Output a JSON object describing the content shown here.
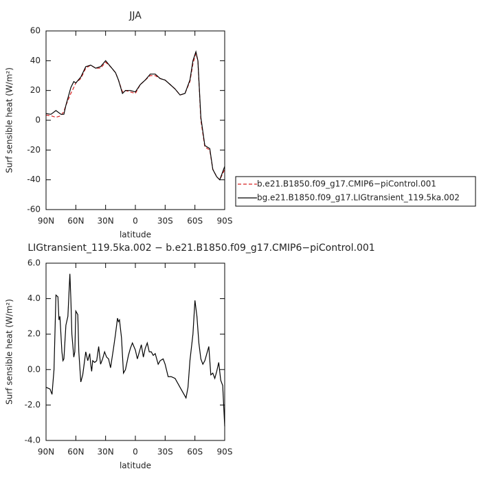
{
  "chart_data": [
    {
      "type": "line",
      "title": "JJA",
      "xlabel": "latitude",
      "ylabel": "Surf sensible heat (W/m²)",
      "x": [
        90,
        85,
        80,
        75,
        72,
        70,
        65,
        62,
        60,
        55,
        50,
        45,
        40,
        35,
        30,
        25,
        20,
        17,
        13,
        10,
        5,
        0,
        -5,
        -10,
        -15,
        -20,
        -25,
        -30,
        -35,
        -40,
        -45,
        -50,
        -55,
        -58,
        -61,
        -63,
        -66,
        -70,
        -75,
        -78,
        -82,
        -85,
        -90
      ],
      "series": [
        {
          "name": "b.e21.B1850.f09_g17.CMIP6−piControl.001",
          "color": "#d62020",
          "linestyle": "dashed",
          "values": [
            3.5,
            3,
            2,
            3,
            6,
            10,
            18,
            22,
            25,
            28,
            35,
            37,
            35,
            35,
            39,
            36,
            32,
            27,
            19,
            20,
            19,
            18,
            24,
            27,
            30,
            30,
            28,
            27,
            24,
            21,
            17,
            18,
            26,
            38,
            45,
            40,
            0,
            -18,
            -20,
            -33,
            -38,
            -40,
            -33
          ]
        },
        {
          "name": "bg.e21.B1850.f09_g17.LIGtransient_119.5ka.002",
          "color": "#000000",
          "linestyle": "solid",
          "values": [
            4.5,
            4,
            6.5,
            4,
            4,
            10,
            22,
            26,
            25,
            29,
            36,
            37,
            35,
            36,
            40,
            36,
            32,
            27,
            18,
            20,
            20,
            19,
            24,
            27,
            31,
            31,
            28,
            27,
            24,
            21,
            17,
            18,
            27,
            40,
            46,
            40,
            2,
            -17,
            -19,
            -33,
            -38,
            -40,
            -31
          ]
        }
      ],
      "xlim": [
        90,
        -90
      ],
      "xticks": [
        {
          "value": 90,
          "label": "90N"
        },
        {
          "value": 60,
          "label": "60N"
        },
        {
          "value": 30,
          "label": "30N"
        },
        0,
        {
          "value": -30,
          "label": "30S"
        },
        {
          "value": -60,
          "label": "60S"
        },
        {
          "value": -90,
          "label": "90S"
        }
      ],
      "ylim": [
        -60,
        60
      ],
      "yticks": [
        -60,
        -40,
        -20,
        0,
        20,
        40,
        60
      ],
      "legend": "right"
    },
    {
      "type": "line",
      "title": "LIGtransient_119.5ka.002 − b.e21.B1850.f09_g17.CMIP6−piControl.001",
      "xlabel": "latitude",
      "ylabel": "Surf sensible heat (W/m²)",
      "x": [
        90,
        86,
        84,
        82,
        80,
        78,
        77,
        76,
        74,
        73,
        72,
        70,
        68,
        66,
        65,
        64,
        62,
        61,
        60,
        58,
        57,
        55,
        53,
        50,
        48,
        46,
        45,
        44,
        43,
        41,
        39,
        37,
        35,
        33,
        31,
        29,
        27,
        25,
        22,
        20,
        18,
        17,
        16,
        14,
        12,
        10,
        7,
        5,
        3,
        0,
        -2,
        -4,
        -6,
        -8,
        -10,
        -12,
        -14,
        -16,
        -18,
        -20,
        -23,
        -25,
        -28,
        -30,
        -33,
        -36,
        -40,
        -43,
        -46,
        -49,
        -51,
        -53,
        -55,
        -58,
        -60,
        -62,
        -64,
        -66,
        -68,
        -70,
        -72,
        -74,
        -76,
        -78,
        -80,
        -82,
        -84,
        -86,
        -88,
        -90
      ],
      "values": [
        -1.0,
        -1.1,
        -1.4,
        0,
        4.2,
        4.1,
        2.8,
        3.0,
        1.0,
        0.5,
        0.6,
        2.5,
        3.0,
        5.4,
        4.0,
        2.0,
        0.7,
        1.0,
        3.3,
        3.1,
        1.0,
        -0.7,
        -0.3,
        1.0,
        0.5,
        0.9,
        0.3,
        -0.1,
        0.5,
        0.4,
        0.5,
        1.3,
        0.3,
        0.6,
        1.0,
        0.7,
        0.6,
        0.1,
        1.2,
        2.0,
        2.9,
        2.7,
        2.8,
        1.8,
        -0.2,
        0,
        0.8,
        1.2,
        1.5,
        1.1,
        0.6,
        1.0,
        1.4,
        0.7,
        1.2,
        1.5,
        1.0,
        1.0,
        0.8,
        0.9,
        0.3,
        0.5,
        0.6,
        0.3,
        -0.4,
        -0.4,
        -0.5,
        -0.8,
        -1.1,
        -1.4,
        -1.6,
        -1.0,
        0.5,
        2.0,
        3.9,
        3.0,
        1.5,
        0.6,
        0.3,
        0.5,
        0.9,
        1.3,
        -0.3,
        -0.2,
        -0.5,
        -0.1,
        0.4,
        -0.6,
        -0.9,
        -3.2
      ],
      "color": "#000000",
      "xlim": [
        90,
        -90
      ],
      "xticks": [
        {
          "value": 90,
          "label": "90N"
        },
        {
          "value": 60,
          "label": "60N"
        },
        {
          "value": 30,
          "label": "30N"
        },
        0,
        {
          "value": -30,
          "label": "30S"
        },
        {
          "value": -60,
          "label": "60S"
        },
        {
          "value": -90,
          "label": "90S"
        }
      ],
      "ylim": [
        -4,
        6
      ],
      "yticks": [
        {
          "value": -4,
          "label": "-4.0"
        },
        {
          "value": -2,
          "label": "-2.0"
        },
        {
          "value": 0,
          "label": "0.0"
        },
        {
          "value": 2,
          "label": "2.0"
        },
        {
          "value": 4,
          "label": "4.0"
        },
        {
          "value": 6,
          "label": "6.0"
        }
      ]
    }
  ]
}
